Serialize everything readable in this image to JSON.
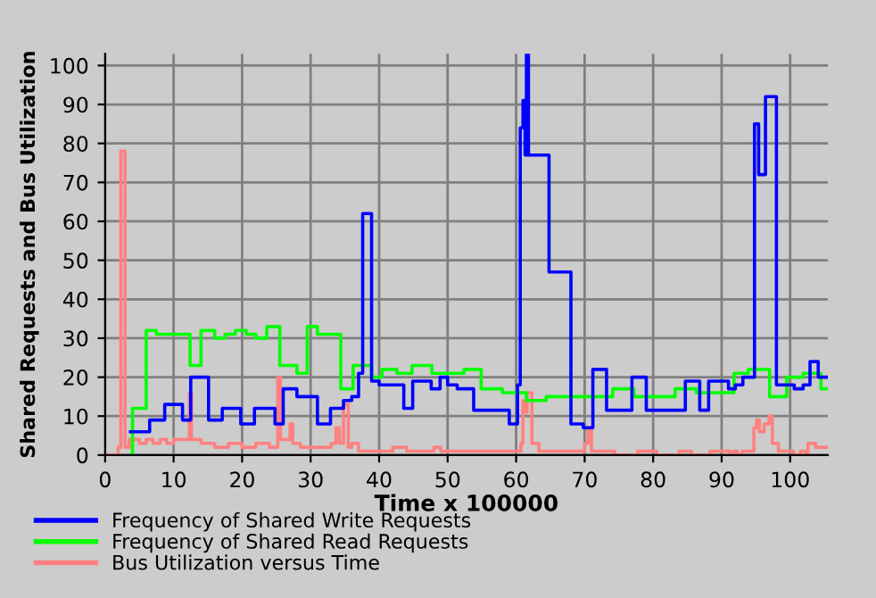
{
  "chart_data": {
    "type": "step",
    "xlabel": "Time x 100000",
    "ylabel": "Shared Requests and Bus Utilization",
    "xlim": [
      0,
      105.5
    ],
    "ylim": [
      0,
      103
    ],
    "xticks": [
      0,
      10,
      20,
      30,
      40,
      50,
      60,
      70,
      80,
      90,
      100
    ],
    "yticks": [
      0,
      10,
      20,
      30,
      40,
      50,
      60,
      70,
      80,
      90,
      100
    ],
    "grid": true,
    "legend": "bottom",
    "marker": "none",
    "line_style": "solid",
    "series": [
      {
        "name": "Frequency of Shared Write Requests",
        "color": "#0000ff",
        "x": [
          3.7,
          6.5,
          8.7,
          11.3,
          12.5,
          15.1,
          17.1,
          19.8,
          21.8,
          24.8,
          26,
          28,
          31,
          32.9,
          34.8,
          36,
          37,
          37.6,
          38.9,
          40,
          43.6,
          44.9,
          47.6,
          48.9,
          50,
          51.4,
          53.8,
          59,
          60.2,
          60.6,
          61,
          61.3,
          61.5,
          61.8,
          62,
          64.8,
          68,
          69.8,
          71.2,
          73.2,
          76.9,
          79,
          84.7,
          86.8,
          88.1,
          91,
          92,
          93.1,
          94.8,
          95.4,
          96.4,
          98,
          100.6,
          101.9,
          102.9,
          104.1,
          105.5
        ],
        "values": [
          6,
          9,
          13,
          9,
          20,
          9,
          12,
          8,
          12,
          8,
          17,
          15,
          8,
          12,
          14,
          15,
          21,
          62,
          19,
          18,
          12,
          19,
          17,
          20,
          18,
          17,
          11.5,
          8,
          18,
          84,
          91,
          77,
          103,
          77,
          77,
          47,
          8,
          7,
          22,
          11.5,
          20,
          11.5,
          19,
          11.5,
          19,
          17,
          18,
          20,
          85,
          72,
          92,
          18,
          17,
          18,
          24,
          20,
          20
        ]
      },
      {
        "name": "Frequency of Shared Read Requests",
        "color": "#00ff00",
        "x": [
          3.7,
          4,
          6,
          7.5,
          12.4,
          14,
          16,
          17.5,
          19,
          20.6,
          22,
          23.6,
          25.5,
          28,
          29.5,
          31,
          34.4,
          36.2,
          38.9,
          40.4,
          42.6,
          44.8,
          47.7,
          52.4,
          54.9,
          58,
          61.5,
          64.4,
          74.1,
          77.2,
          83.2,
          86.3,
          91.8,
          93.9,
          97,
          99.5,
          101.9,
          104.5,
          105.5
        ],
        "values": [
          0,
          12,
          32,
          31,
          23,
          32,
          30,
          31,
          32,
          31,
          30,
          33,
          23,
          21,
          33,
          31,
          17,
          23,
          20,
          22,
          21,
          23,
          21,
          22,
          17,
          16,
          14,
          15,
          17,
          15,
          17,
          16,
          21,
          22,
          15,
          20,
          21,
          17,
          17
        ]
      },
      {
        "name": "Bus Utilization versus Time",
        "color": "#ff8080",
        "x": [
          0,
          1.9,
          2.3,
          2.9,
          3.5,
          5,
          6,
          7,
          8,
          9,
          10,
          12.3,
          12.6,
          14,
          16,
          18,
          20,
          22,
          24,
          25.2,
          25.6,
          27,
          27.4,
          28.5,
          33,
          33.7,
          34.2,
          34.8,
          35.5,
          36,
          37,
          42,
          44,
          48,
          49,
          60.7,
          61,
          61.4,
          61.6,
          62.3,
          63.3,
          70,
          70.5,
          71,
          74.4,
          77.7,
          80.5,
          83.8,
          85.6,
          88.3,
          91.2,
          91.7,
          92.3,
          93,
          94.7,
          95.1,
          95.5,
          96.2,
          96.9,
          97.4,
          98.3,
          100.5,
          101.5,
          102.3,
          102.6,
          103.7,
          105.5
        ],
        "values": [
          0,
          2,
          78,
          2,
          4,
          3,
          4,
          3,
          4,
          3,
          4,
          16,
          4,
          3,
          2,
          3,
          2,
          3,
          2,
          20,
          4,
          8,
          3,
          2,
          3,
          7,
          3,
          13,
          2,
          3,
          1,
          2,
          1,
          2,
          1,
          3,
          14,
          11,
          16,
          3,
          1,
          3,
          7,
          1,
          0,
          1,
          0,
          1,
          0,
          1,
          0,
          1,
          0,
          1,
          7,
          9,
          6,
          8,
          10,
          3,
          1,
          0,
          1,
          0,
          3,
          2,
          2
        ]
      }
    ]
  }
}
